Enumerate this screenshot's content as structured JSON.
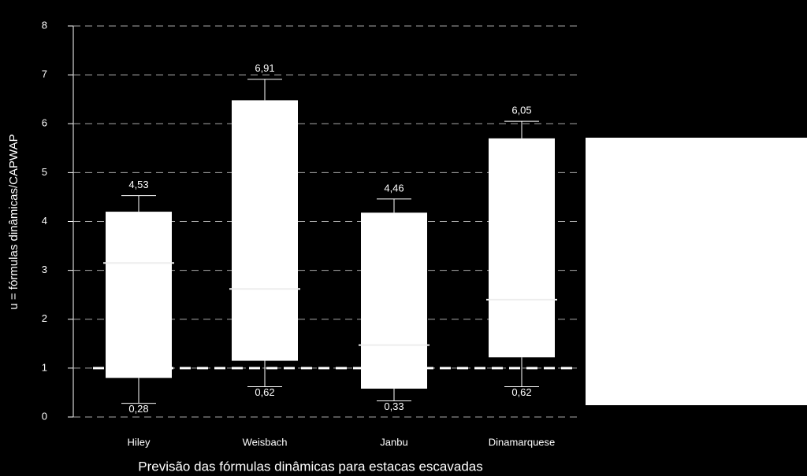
{
  "chart_data": {
    "type": "box",
    "y_label": "u = fórmulas dinâmicas/CAPWAP",
    "x_label": "Previsão das fórmulas dinâmicas para estacas escavadas",
    "categories": [
      "Hiley",
      "Weisbach",
      "Janbu",
      "Dinamarquese"
    ],
    "min": [
      0.28,
      0.62,
      0.33,
      0.62
    ],
    "min_labels": [
      "0,28",
      "0,62",
      "0,33",
      "0,62"
    ],
    "q1": [
      0.8,
      1.15,
      0.58,
      1.22
    ],
    "median": [
      3.15,
      2.62,
      1.47,
      2.4
    ],
    "q3": [
      4.2,
      6.48,
      4.18,
      5.7
    ],
    "max": [
      4.53,
      6.91,
      4.46,
      6.05
    ],
    "max_labels": [
      "4,53",
      "6,91",
      "4,46",
      "6,05"
    ],
    "color": "#ffffff",
    "reference_line": 1,
    "ylim": [
      0,
      8
    ],
    "yticks": [
      0,
      1,
      2,
      3,
      4,
      5,
      6,
      7,
      8
    ],
    "grid": true
  }
}
